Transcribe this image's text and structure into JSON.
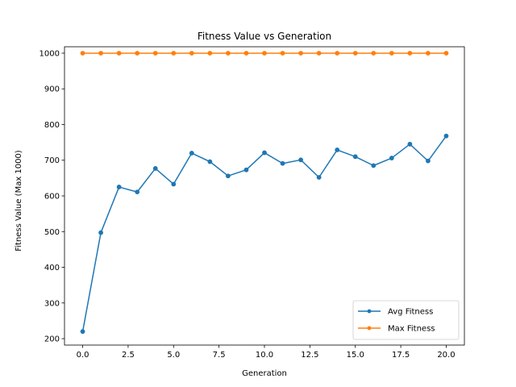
{
  "chart_data": {
    "type": "line",
    "title": "Fitness Value vs Generation",
    "xlabel": "Generation",
    "ylabel": "Fitness Value (Max 1000)",
    "xlim": [
      -1,
      21
    ],
    "ylim": [
      182,
      1018
    ],
    "xticks": [
      0,
      2.5,
      5,
      7.5,
      10,
      12.5,
      15,
      17.5,
      20
    ],
    "xtick_labels": [
      "0.0",
      "2.5",
      "5.0",
      "7.5",
      "10.0",
      "12.5",
      "15.0",
      "17.5",
      "20.0"
    ],
    "yticks": [
      200,
      300,
      400,
      500,
      600,
      700,
      800,
      900,
      1000
    ],
    "ytick_labels": [
      "200",
      "300",
      "400",
      "500",
      "600",
      "700",
      "800",
      "900",
      "1000"
    ],
    "grid": false,
    "legend_position": "lower-right",
    "x": [
      0,
      1,
      2,
      3,
      4,
      5,
      6,
      7,
      8,
      9,
      10,
      11,
      12,
      13,
      14,
      15,
      16,
      17,
      18,
      19,
      20
    ],
    "series": [
      {
        "name": "Avg Fitness",
        "color": "#1f77b4",
        "marker": "dot",
        "values": [
          220,
          497,
          625,
          611,
          677,
          633,
          720,
          696,
          656,
          673,
          721,
          691,
          701,
          652,
          729,
          710,
          685,
          706,
          745,
          698,
          768
        ]
      },
      {
        "name": "Max Fitness",
        "color": "#ff7f0e",
        "marker": "dot",
        "values": [
          1000,
          1000,
          1000,
          1000,
          1000,
          1000,
          1000,
          1000,
          1000,
          1000,
          1000,
          1000,
          1000,
          1000,
          1000,
          1000,
          1000,
          1000,
          1000,
          1000,
          1000
        ]
      }
    ]
  }
}
